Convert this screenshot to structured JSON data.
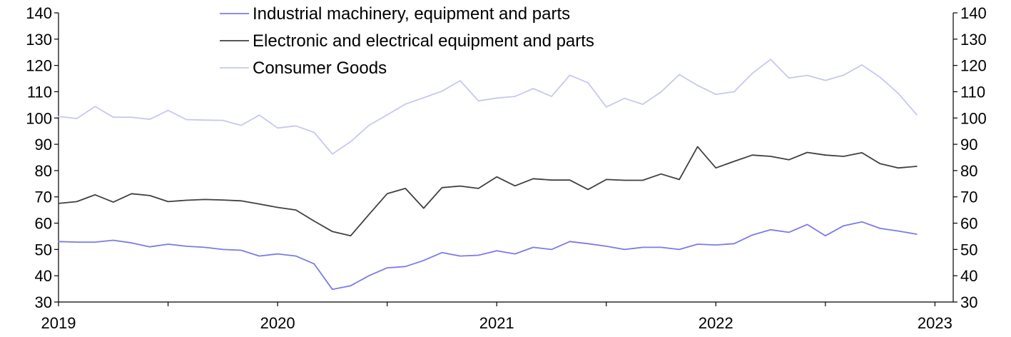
{
  "chart_data": {
    "type": "line",
    "title": "",
    "xlabel": "",
    "ylabel": "",
    "ylim": [
      30,
      140
    ],
    "y_ticks": [
      "30",
      "40",
      "50",
      "60",
      "70",
      "80",
      "90",
      "100",
      "110",
      "120",
      "130",
      "140"
    ],
    "x_ticks": [
      {
        "label": "2019",
        "month": 0
      },
      {
        "label": "2020",
        "month": 12
      },
      {
        "label": "2021",
        "month": 24
      },
      {
        "label": "2022",
        "month": 36
      },
      {
        "label": "2023",
        "month": 48
      }
    ],
    "grid": false,
    "legend_position": "top-center",
    "x_start": "2019-01",
    "x_step": "month",
    "series": [
      {
        "name": "Industrial machinery, equipment and parts",
        "color": "#7b7bea",
        "values": [
          53.0,
          52.8,
          52.8,
          53.5,
          52.5,
          51.0,
          52.0,
          51.2,
          50.8,
          50.0,
          49.7,
          47.5,
          48.3,
          47.5,
          44.5,
          34.8,
          36.2,
          40.0,
          43.0,
          43.5,
          45.8,
          48.8,
          47.5,
          47.8,
          49.5,
          48.3,
          50.8,
          50.0,
          53.0,
          52.2,
          51.2,
          50.0,
          50.8,
          50.8,
          50.0,
          52.0,
          51.7,
          52.2,
          55.5,
          57.5,
          56.5,
          59.5,
          55.2,
          59.0,
          60.5,
          58.0,
          57.0,
          55.8
        ]
      },
      {
        "name": "Electronic and electrical equipment and parts",
        "color": "#404040",
        "values": [
          67.5,
          68.2,
          70.8,
          68.0,
          71.2,
          70.5,
          68.2,
          68.7,
          69.0,
          68.8,
          68.5,
          67.3,
          66.0,
          65.0,
          60.8,
          56.8,
          55.2,
          63.3,
          71.2,
          73.2,
          65.7,
          73.5,
          74.1,
          73.2,
          77.6,
          74.2,
          76.9,
          76.4,
          76.4,
          72.8,
          76.6,
          76.3,
          76.3,
          78.7,
          76.6,
          89.1,
          81.0,
          83.5,
          85.9,
          85.4,
          84.1,
          86.9,
          85.9,
          85.4,
          86.8,
          82.6,
          81.0,
          81.6
        ]
      },
      {
        "name": "Consumer Goods",
        "color": "#c6c8ef",
        "values": [
          100.6,
          99.8,
          104.4,
          100.3,
          100.3,
          99.5,
          102.9,
          99.4,
          99.2,
          99.1,
          97.2,
          101.1,
          96.2,
          97.0,
          94.5,
          86.3,
          91.0,
          97.2,
          101.2,
          105.3,
          107.7,
          110.2,
          114.2,
          106.5,
          107.6,
          108.2,
          111.2,
          108.2,
          116.3,
          113.4,
          104.2,
          107.5,
          105.2,
          109.9,
          116.5,
          112.4,
          109.0,
          110.0,
          117.0,
          122.3,
          115.2,
          116.2,
          114.3,
          116.3,
          120.2,
          115.5,
          109.3,
          101.3
        ]
      }
    ]
  }
}
